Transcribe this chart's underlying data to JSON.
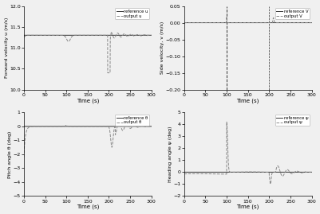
{
  "xlim": [
    0,
    300
  ],
  "xticks": [
    0,
    50,
    100,
    150,
    200,
    250,
    300
  ],
  "xlabel": "Time (s)",
  "subplots": [
    {
      "ylabel": "Forward velocity u (m/s)",
      "ylim": [
        10,
        12
      ],
      "yticks": [
        10,
        10.5,
        11,
        11.5,
        12
      ],
      "ref_label": "reference u",
      "out_label": "output u"
    },
    {
      "ylabel": "Side velocity, v (m/s)",
      "ylim": [
        -0.2,
        0.05
      ],
      "yticks": [
        -0.2,
        -0.15,
        -0.1,
        -0.05,
        0,
        0.05
      ],
      "ref_label": "reference V",
      "out_label": "output V"
    },
    {
      "ylabel": "Pitch angle θ (deg)",
      "ylim": [
        -5,
        1
      ],
      "yticks": [
        -5,
        -4,
        -3,
        -2,
        -1,
        0,
        1
      ],
      "ref_label": "reference θ",
      "out_label": "output θ"
    },
    {
      "ylabel": "Heading angle ψ (deg)",
      "ylim": [
        -2,
        5
      ],
      "yticks": [
        -2,
        -1,
        0,
        1,
        2,
        3,
        4,
        5
      ],
      "ref_label": "reference ψ",
      "out_label": "output ψ"
    }
  ],
  "bg_color": "#f0f0f0",
  "line_color_ref": "#333333",
  "line_color_out": "#888888"
}
